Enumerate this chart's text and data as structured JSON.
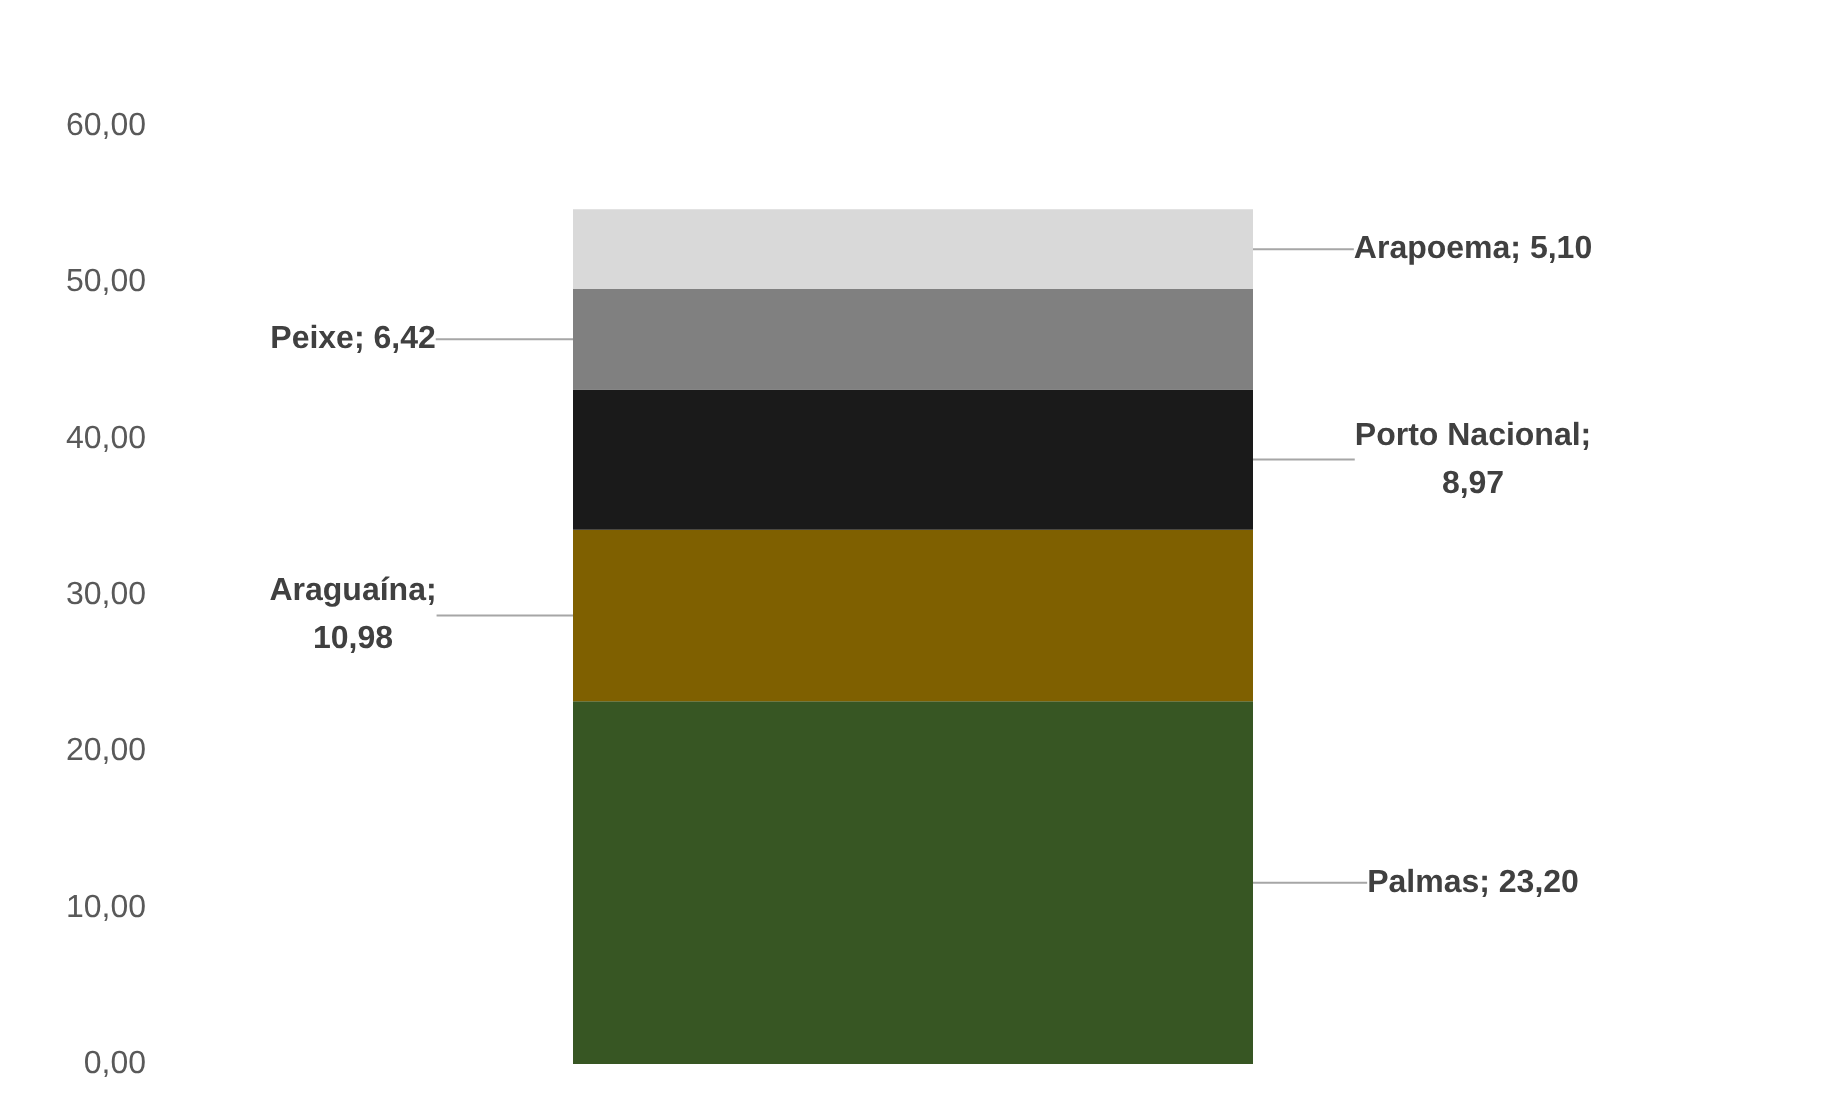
{
  "chart_data": {
    "type": "bar",
    "stacked": true,
    "categories": [
      null
    ],
    "series": [
      {
        "color": "#375623",
        "values": [
          23.2
        ],
        "value_labels": [
          "Palmas; 23,20"
        ]
      },
      {
        "color": "#7f6000",
        "values": [
          10.98
        ],
        "value_labels": [
          "Araguaína; 10,98"
        ]
      },
      {
        "color": "#1a1a1a",
        "values": [
          8.97
        ],
        "value_labels": [
          "Porto Nacional; 8,97"
        ]
      },
      {
        "color": "#808080",
        "values": [
          6.42
        ],
        "value_labels": [
          "Peixe; 6,42"
        ]
      },
      {
        "color": "#d9d9d9",
        "values": [
          5.1
        ],
        "value_labels": [
          "Arapoema; 5,10"
        ]
      }
    ],
    "ylim": [
      0,
      60
    ],
    "yticks": [
      {
        "value": 0,
        "label": "0,00"
      },
      {
        "value": 10,
        "label": "10,00"
      },
      {
        "value": 20,
        "label": "20,00"
      },
      {
        "value": 30,
        "label": "30,00"
      },
      {
        "value": 40,
        "label": "40,00"
      },
      {
        "value": 50,
        "label": "50,00"
      },
      {
        "value": 60,
        "label": "60,00"
      }
    ],
    "grid": false
  }
}
